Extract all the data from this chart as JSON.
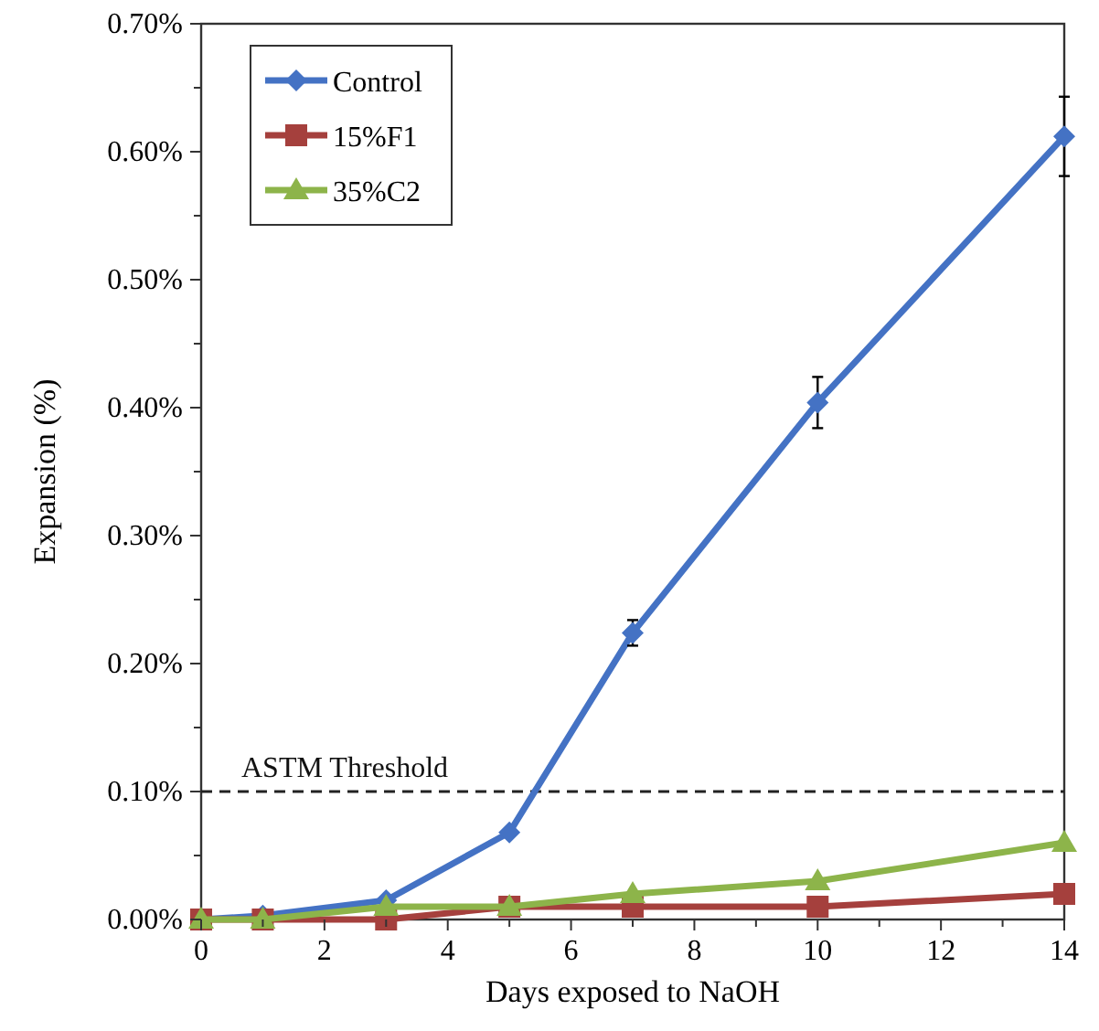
{
  "chart_data": {
    "type": "line",
    "xlabel": "Days exposed to NaOH",
    "ylabel": "Expansion (%)",
    "xlim": [
      0,
      14
    ],
    "ylim": [
      0,
      0.7
    ],
    "xticks": [
      0,
      {
        "value": 1,
        "label": null
      },
      2,
      {
        "value": 3,
        "label": null
      },
      4,
      {
        "value": 5,
        "label": null
      },
      6,
      {
        "value": 7,
        "label": null
      },
      8,
      {
        "value": 9,
        "label": null
      },
      10,
      {
        "value": 11,
        "label": null
      },
      12,
      {
        "value": 13,
        "label": null
      },
      14
    ],
    "yticks": [
      {
        "value": 0,
        "label": "0.00%"
      },
      {
        "value": 0.05,
        "label": null
      },
      {
        "value": 0.1,
        "label": "0.10%"
      },
      {
        "value": 0.15,
        "label": null
      },
      {
        "value": 0.2,
        "label": "0.20%"
      },
      {
        "value": 0.25,
        "label": null
      },
      {
        "value": 0.3,
        "label": "0.30%"
      },
      {
        "value": 0.35,
        "label": null
      },
      {
        "value": 0.4,
        "label": "0.40%"
      },
      {
        "value": 0.45,
        "label": null
      },
      {
        "value": 0.5,
        "label": "0.50%"
      },
      {
        "value": 0.55,
        "label": null
      },
      {
        "value": 0.6,
        "label": "0.60%"
      },
      {
        "value": 0.65,
        "label": null
      },
      {
        "value": 0.7,
        "label": "0.70%"
      }
    ],
    "x": [
      0,
      1,
      3,
      5,
      7,
      10,
      14
    ],
    "series": [
      {
        "name": "Control",
        "color": "#4472c4",
        "marker": "diamond",
        "values": [
          0,
          0.003,
          0.015,
          0.068,
          0.224,
          0.404,
          0.612
        ],
        "errors": [
          null,
          null,
          null,
          null,
          0.01,
          0.02,
          0.031
        ]
      },
      {
        "name": "15%F1",
        "color": "#a5403d",
        "marker": "square",
        "values": [
          0,
          0,
          0,
          0.01,
          0.01,
          0.01,
          0.02
        ]
      },
      {
        "name": "35%C2",
        "color": "#8db44a",
        "marker": "triangle",
        "values": [
          0,
          0,
          0.01,
          0.01,
          0.02,
          0.03,
          0.06
        ]
      }
    ],
    "ref_lines": [
      {
        "axis": "y",
        "value": 0.1,
        "label": "ASTM Threshold",
        "color": "#222222",
        "line_style": "dashed"
      }
    ],
    "legend": "top left",
    "grid": false
  }
}
